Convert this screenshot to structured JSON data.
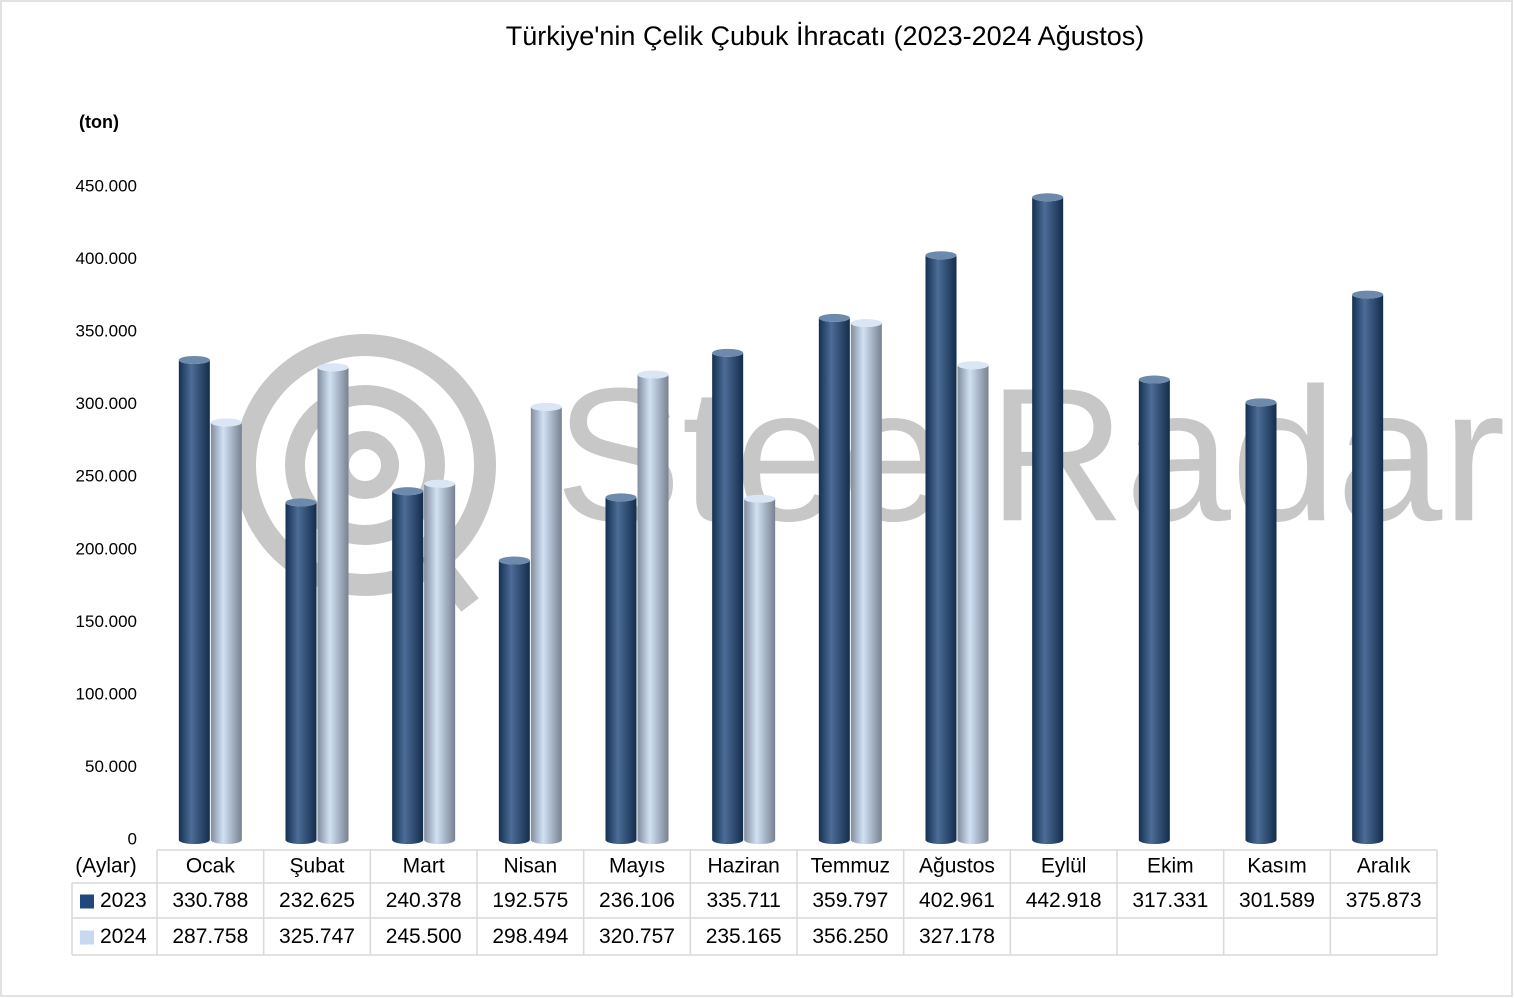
{
  "chart_data": {
    "type": "bar",
    "title": "Türkiye'nin Çelik Çubuk İhracatı (2023-2024 Ağustos)",
    "y_label": "(ton)",
    "x_label": "(Aylar)",
    "watermark": "SteelRadar",
    "categories": [
      "Ocak",
      "Şubat",
      "Mart",
      "Nisan",
      "Mayıs",
      "Haziran",
      "Temmuz",
      "Ağustos",
      "Eylül",
      "Ekim",
      "Kasım",
      "Aralık"
    ],
    "series": [
      {
        "name": "2023",
        "color": "#1f497d",
        "values": [
          330788,
          232625,
          240378,
          192575,
          236106,
          335711,
          359797,
          402961,
          442918,
          317331,
          301589,
          375873
        ],
        "value_labels": [
          "330.788",
          "232.625",
          "240.378",
          "192.575",
          "236.106",
          "335.711",
          "359.797",
          "402.961",
          "442.918",
          "317.331",
          "301.589",
          "375.873"
        ]
      },
      {
        "name": "2024",
        "color": "#c6d9f1",
        "values": [
          287758,
          325747,
          245500,
          298494,
          320757,
          235165,
          356250,
          327178,
          null,
          null,
          null,
          null
        ],
        "value_labels": [
          "287.758",
          "325.747",
          "245.500",
          "298.494",
          "320.757",
          "235.165",
          "356.250",
          "327.178",
          null,
          null,
          null,
          null
        ]
      }
    ],
    "ylim": [
      0,
      450000
    ],
    "yticks": [
      0,
      {
        "value": 50000,
        "label": "50.000"
      },
      {
        "value": 100000,
        "label": "100.000"
      },
      {
        "value": 150000,
        "label": "150.000"
      },
      {
        "value": 200000,
        "label": "200.000"
      },
      {
        "value": 250000,
        "label": "250.000"
      },
      {
        "value": 300000,
        "label": "300.000"
      },
      {
        "value": 350000,
        "label": "350.000"
      },
      {
        "value": 400000,
        "label": "400.000"
      },
      {
        "value": 450000,
        "label": "450.000"
      }
    ],
    "grid": false
  }
}
